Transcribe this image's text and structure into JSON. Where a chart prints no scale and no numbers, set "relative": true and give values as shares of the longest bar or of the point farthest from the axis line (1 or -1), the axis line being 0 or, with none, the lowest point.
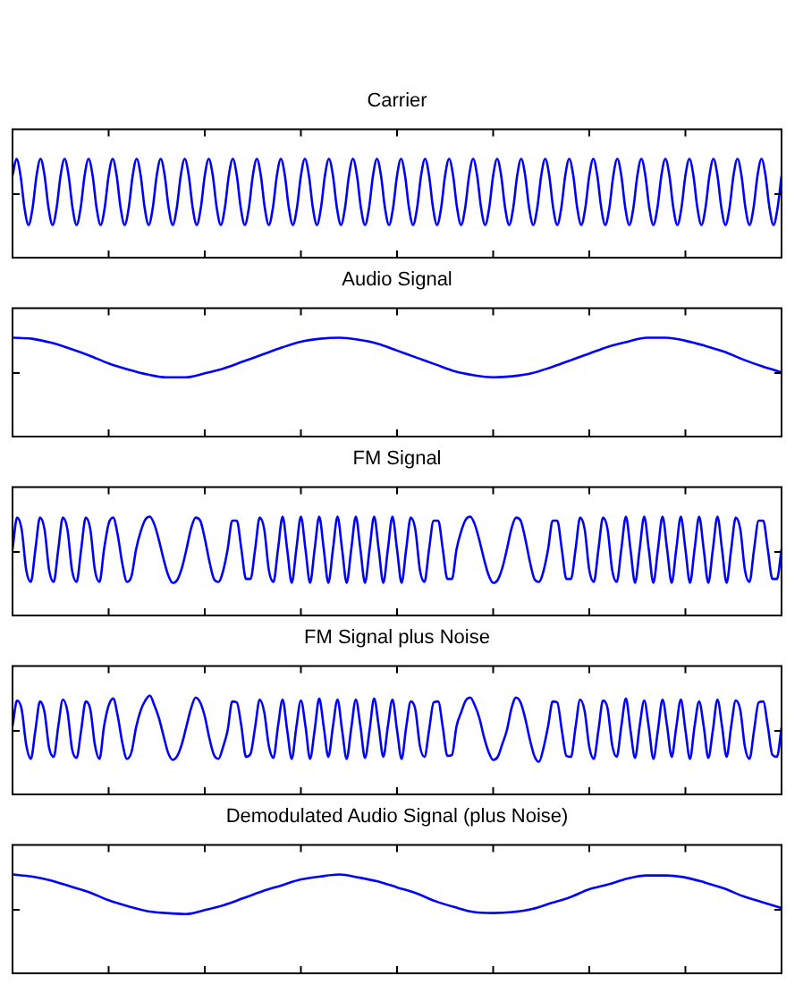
{
  "chart_data": [
    {
      "type": "line",
      "title": "Carrier",
      "relative": true,
      "categories": [
        null,
        null,
        null,
        null,
        null,
        null,
        null,
        null,
        null,
        null,
        null,
        null,
        null,
        null,
        null,
        null,
        null,
        null,
        null,
        null,
        null,
        null,
        null,
        null,
        null,
        null,
        null,
        null,
        null,
        null,
        null,
        null,
        null,
        null,
        null,
        null,
        null,
        null,
        null,
        null,
        null,
        null,
        null,
        null,
        null,
        null,
        null,
        null,
        null,
        null,
        null,
        null,
        null,
        null,
        null,
        null,
        null,
        null,
        null,
        null,
        null,
        null,
        null,
        null,
        null,
        null,
        null,
        null,
        null,
        null,
        null,
        null,
        null,
        null,
        null,
        null,
        null,
        null,
        null,
        null,
        null,
        null,
        null,
        null,
        null,
        null,
        null,
        null,
        null,
        null,
        null,
        null,
        null,
        null,
        null,
        null,
        null,
        null,
        null,
        null,
        null,
        null,
        null,
        null,
        null,
        null,
        null,
        null,
        null,
        null,
        null,
        null,
        null,
        null,
        null,
        null,
        null,
        null,
        null,
        null,
        null,
        null,
        null,
        null,
        null,
        null,
        null,
        null,
        null,
        null,
        null,
        null,
        null,
        null,
        null,
        null,
        null,
        null,
        null,
        null,
        null,
        null,
        null,
        null,
        null,
        null,
        null,
        null,
        null,
        null,
        null,
        null,
        null,
        null,
        null,
        null,
        null,
        null,
        null,
        null,
        null,
        null,
        null,
        null,
        null,
        null,
        null,
        null,
        null,
        null,
        null,
        null,
        null,
        null,
        null,
        null,
        null,
        null,
        null,
        null,
        null,
        null,
        null,
        null,
        null,
        null,
        null,
        null,
        null,
        null,
        null,
        null,
        null
      ],
      "series": [
        {
          "color": "#0000ff",
          "values": [
            0.83,
            1,
            0.83,
            0.5,
            0.33,
            0.5,
            0.83,
            1,
            0.83,
            0.5,
            0.33,
            0.5,
            0.83,
            1,
            0.83,
            0.5,
            0.33,
            0.5,
            0.83,
            1,
            0.83,
            0.5,
            0.33,
            0.5,
            0.83,
            1,
            0.83,
            0.5,
            0.33,
            0.5,
            0.83,
            1,
            0.83,
            0.5,
            0.33,
            0.5,
            0.83,
            1,
            0.83,
            0.5,
            0.33,
            0.5,
            0.83,
            1,
            0.83,
            0.5,
            0.33,
            0.5,
            0.83,
            1,
            0.83,
            0.5,
            0.33,
            0.5,
            0.83,
            1,
            0.83,
            0.5,
            0.33,
            0.5,
            0.83,
            1,
            0.83,
            0.5,
            0.33,
            0.5,
            0.83,
            1,
            0.83,
            0.5,
            0.33,
            0.5,
            0.83,
            1,
            0.83,
            0.5,
            0.33,
            0.5,
            0.83,
            1,
            0.83,
            0.5,
            0.33,
            0.5,
            0.83,
            1,
            0.83,
            0.5,
            0.33,
            0.5,
            0.83,
            1,
            0.83,
            0.5,
            0.33,
            0.5,
            0.83,
            1,
            0.83,
            0.5,
            0.33,
            0.5,
            0.83,
            1,
            0.83,
            0.5,
            0.33,
            0.5,
            0.83,
            1,
            0.83,
            0.5,
            0.33,
            0.5,
            0.83,
            1,
            0.83,
            0.5,
            0.33,
            0.5,
            0.83,
            1,
            0.83,
            0.5,
            0.33,
            0.5,
            0.83,
            1,
            0.83,
            0.5,
            0.33,
            0.5,
            0.83,
            1,
            0.83,
            0.5,
            0.33,
            0.5,
            0.83,
            1,
            0.83,
            0.5,
            0.33,
            0.5,
            0.83,
            1,
            0.83,
            0.5,
            0.33,
            0.5,
            0.83,
            1,
            0.83,
            0.5,
            0.33,
            0.5,
            0.83,
            1,
            0.83,
            0.5,
            0.33,
            0.5,
            0.83,
            1,
            0.83,
            0.5,
            0.33,
            0.5,
            0.83,
            1,
            0.83,
            0.5,
            0.33,
            0.5,
            0.83,
            1,
            0.83,
            0.5,
            0.33,
            0.5,
            0.83,
            1,
            0.83,
            0.5,
            0.33,
            0.5,
            0.83,
            1,
            0.83,
            0.5,
            0.33,
            0.5,
            0.83
          ]
        }
      ]
    },
    {
      "type": "line",
      "title": "Audio Signal",
      "relative": true,
      "categories": [
        null,
        null,
        null,
        null,
        null,
        null,
        null,
        null,
        null,
        null,
        null,
        null,
        null,
        null,
        null,
        null,
        null,
        null,
        null,
        null,
        null,
        null,
        null,
        null,
        null,
        null,
        null,
        null,
        null,
        null,
        null,
        null,
        null,
        null,
        null,
        null,
        null,
        null,
        null,
        null,
        null
      ],
      "series": [
        {
          "color": "#0000ff",
          "values": [
            1,
            0.99,
            0.95,
            0.89,
            0.82,
            0.74,
            0.68,
            0.63,
            0.6,
            0.6,
            0.64,
            0.69,
            0.76,
            0.83,
            0.9,
            0.96,
            0.99,
            1,
            0.98,
            0.94,
            0.87,
            0.8,
            0.73,
            0.66,
            0.62,
            0.6,
            0.61,
            0.64,
            0.7,
            0.77,
            0.84,
            0.91,
            0.96,
            1,
            1,
            0.97,
            0.92,
            0.86,
            0.78,
            0.71,
            0.65
          ]
        }
      ]
    },
    {
      "type": "line",
      "title": "FM Signal",
      "relative": true,
      "categories": [
        null,
        null,
        null,
        null,
        null,
        null,
        null,
        null,
        null,
        null,
        null,
        null,
        null,
        null,
        null,
        null,
        null,
        null,
        null,
        null,
        null,
        null,
        null,
        null,
        null,
        null,
        null,
        null,
        null,
        null,
        null,
        null,
        null,
        null,
        null,
        null,
        null,
        null,
        null,
        null,
        null,
        null,
        null,
        null,
        null,
        null,
        null,
        null,
        null,
        null,
        null,
        null,
        null,
        null,
        null,
        null,
        null,
        null,
        null,
        null,
        null,
        null,
        null,
        null,
        null,
        null,
        null,
        null,
        null,
        null,
        null,
        null,
        null,
        null,
        null,
        null,
        null,
        null,
        null,
        null,
        null,
        null,
        null,
        null,
        null,
        null,
        null,
        null,
        null,
        null,
        null,
        null,
        null,
        null,
        null,
        null,
        null,
        null,
        null,
        null,
        null,
        null,
        null,
        null,
        null,
        null,
        null,
        null,
        null,
        null,
        null,
        null,
        null,
        null,
        null,
        null,
        null,
        null,
        null,
        null,
        null,
        null,
        null,
        null,
        null,
        null,
        null,
        null,
        null,
        null,
        null,
        null,
        null,
        null,
        null,
        null,
        null,
        null,
        null,
        null,
        null,
        null,
        null,
        null,
        null,
        null,
        null,
        null,
        null,
        null,
        null,
        null,
        null,
        null,
        null,
        null,
        null,
        null,
        null,
        null,
        null,
        null,
        null,
        null,
        null,
        null,
        null,
        null,
        null
      ],
      "series": [
        {
          "color": "#0000ff",
          "values": [
            0.67,
            0.99,
            0.87,
            0.46,
            0.34,
            0.67,
            0.99,
            0.87,
            0.46,
            0.34,
            0.67,
            0.99,
            0.87,
            0.46,
            0.34,
            0.67,
            0.99,
            0.87,
            0.46,
            0.34,
            0.67,
            0.93,
            0.99,
            0.81,
            0.52,
            0.34,
            0.4,
            0.67,
            0.85,
            0.97,
            1,
            0.92,
            0.76,
            0.57,
            0.41,
            0.33,
            0.36,
            0.48,
            0.67,
            0.88,
            0.99,
            0.96,
            0.78,
            0.55,
            0.37,
            0.34,
            0.45,
            0.67,
            0.96,
            0.96,
            0.67,
            0.37,
            0.37,
            0.67,
            0.99,
            0.87,
            0.46,
            0.34,
            0.67,
            1,
            0.67,
            0.33,
            0.67,
            1,
            0.67,
            0.33,
            0.67,
            1,
            0.67,
            0.33,
            0.67,
            1,
            0.67,
            0.33,
            0.67,
            1,
            0.67,
            0.33,
            0.67,
            1,
            0.67,
            0.33,
            0.67,
            1,
            0.67,
            0.33,
            0.67,
            0.99,
            0.87,
            0.46,
            0.34,
            0.67,
            0.96,
            0.96,
            0.67,
            0.37,
            0.37,
            0.67,
            0.85,
            0.97,
            1,
            0.92,
            0.76,
            0.57,
            0.41,
            0.33,
            0.36,
            0.48,
            0.67,
            0.88,
            0.99,
            0.96,
            0.78,
            0.55,
            0.37,
            0.34,
            0.45,
            0.67,
            0.96,
            0.96,
            0.67,
            0.37,
            0.37,
            0.67,
            0.99,
            0.87,
            0.46,
            0.34,
            0.67,
            0.99,
            0.87,
            0.46,
            0.34,
            0.67,
            1,
            0.67,
            0.33,
            0.67,
            1,
            0.67,
            0.33,
            0.67,
            1,
            0.67,
            0.33,
            0.67,
            1,
            0.67,
            0.33,
            0.67,
            1,
            0.67,
            0.33,
            0.67,
            1,
            0.67,
            0.33,
            0.67,
            0.99,
            0.87,
            0.46,
            0.34,
            0.67,
            0.96,
            0.96,
            0.67,
            0.37,
            0.37,
            0.67
          ]
        }
      ]
    },
    {
      "type": "line",
      "title": "FM Signal plus Noise",
      "relative": true,
      "categories": [
        null,
        null,
        null,
        null,
        null,
        null,
        null,
        null,
        null,
        null,
        null,
        null,
        null,
        null,
        null,
        null,
        null,
        null,
        null,
        null,
        null,
        null,
        null,
        null,
        null,
        null,
        null,
        null,
        null,
        null,
        null,
        null,
        null,
        null,
        null,
        null,
        null,
        null,
        null,
        null,
        null,
        null,
        null,
        null,
        null,
        null,
        null,
        null,
        null,
        null,
        null,
        null,
        null,
        null,
        null,
        null,
        null,
        null,
        null,
        null,
        null,
        null,
        null,
        null,
        null,
        null,
        null,
        null,
        null,
        null,
        null,
        null,
        null,
        null,
        null,
        null,
        null,
        null,
        null,
        null,
        null,
        null,
        null,
        null,
        null,
        null,
        null,
        null,
        null,
        null,
        null,
        null,
        null,
        null,
        null,
        null,
        null,
        null,
        null,
        null,
        null,
        null,
        null,
        null,
        null,
        null,
        null,
        null,
        null,
        null,
        null,
        null,
        null,
        null,
        null,
        null,
        null,
        null,
        null,
        null,
        null,
        null,
        null,
        null,
        null,
        null,
        null,
        null,
        null,
        null,
        null,
        null,
        null,
        null,
        null,
        null,
        null,
        null,
        null,
        null,
        null,
        null,
        null,
        null,
        null,
        null,
        null,
        null,
        null,
        null,
        null,
        null,
        null,
        null,
        null,
        null,
        null,
        null,
        null,
        null,
        null,
        null,
        null,
        null,
        null,
        null,
        null,
        null,
        null
      ],
      "series": [
        {
          "color": "#0000ff",
          "values": [
            0.69,
            0.95,
            0.86,
            0.5,
            0.36,
            0.65,
            0.94,
            0.83,
            0.47,
            0.38,
            0.69,
            0.96,
            0.84,
            0.46,
            0.37,
            0.65,
            0.94,
            0.86,
            0.5,
            0.36,
            0.69,
            0.9,
            0.97,
            0.79,
            0.52,
            0.36,
            0.43,
            0.68,
            0.85,
            0.95,
            1,
            0.9,
            0.77,
            0.59,
            0.42,
            0.35,
            0.39,
            0.51,
            0.69,
            0.87,
            0.98,
            0.93,
            0.79,
            0.57,
            0.4,
            0.36,
            0.48,
            0.65,
            0.94,
            0.93,
            0.69,
            0.38,
            0.41,
            0.68,
            0.96,
            0.83,
            0.49,
            0.37,
            0.69,
            0.96,
            0.65,
            0.36,
            0.68,
            0.95,
            0.69,
            0.36,
            0.65,
            0.97,
            0.68,
            0.38,
            0.69,
            0.96,
            0.65,
            0.36,
            0.67,
            0.96,
            0.69,
            0.37,
            0.65,
            0.97,
            0.69,
            0.38,
            0.69,
            0.96,
            0.65,
            0.36,
            0.68,
            0.94,
            0.86,
            0.49,
            0.38,
            0.65,
            0.93,
            0.94,
            0.68,
            0.39,
            0.4,
            0.69,
            0.83,
            0.95,
            0.98,
            0.9,
            0.77,
            0.58,
            0.43,
            0.35,
            0.38,
            0.51,
            0.65,
            0.87,
            0.98,
            0.93,
            0.77,
            0.56,
            0.39,
            0.33,
            0.47,
            0.69,
            0.94,
            0.93,
            0.65,
            0.39,
            0.38,
            0.68,
            0.96,
            0.84,
            0.48,
            0.36,
            0.65,
            0.95,
            0.87,
            0.5,
            0.38,
            0.69,
            0.97,
            0.65,
            0.37,
            0.69,
            0.95,
            0.68,
            0.36,
            0.65,
            0.96,
            0.69,
            0.38,
            0.68,
            0.96,
            0.65,
            0.36,
            0.69,
            0.94,
            0.69,
            0.37,
            0.65,
            0.96,
            0.69,
            0.38,
            0.69,
            0.95,
            0.85,
            0.48,
            0.36,
            0.65,
            0.93,
            0.94,
            0.69,
            0.4,
            0.38,
            0.68
          ]
        }
      ]
    },
    {
      "type": "line",
      "title": "Demodulated Audio Signal (plus Noise)",
      "relative": true,
      "categories": [
        null,
        null,
        null,
        null,
        null,
        null,
        null,
        null,
        null,
        null,
        null,
        null,
        null,
        null,
        null,
        null,
        null,
        null,
        null,
        null,
        null,
        null,
        null,
        null,
        null,
        null,
        null,
        null,
        null,
        null,
        null,
        null,
        null,
        null,
        null,
        null,
        null,
        null,
        null,
        null,
        null
      ],
      "series": [
        {
          "color": "#0000ff",
          "values": [
            1,
            0.98,
            0.94,
            0.88,
            0.82,
            0.74,
            0.68,
            0.63,
            0.61,
            0.6,
            0.64,
            0.69,
            0.76,
            0.83,
            0.89,
            0.95,
            0.98,
            1,
            0.97,
            0.93,
            0.87,
            0.81,
            0.73,
            0.67,
            0.62,
            0.61,
            0.62,
            0.65,
            0.71,
            0.77,
            0.85,
            0.9,
            0.96,
            0.99,
            0.99,
            0.97,
            0.92,
            0.86,
            0.78,
            0.72,
            0.66
          ]
        }
      ]
    }
  ]
}
